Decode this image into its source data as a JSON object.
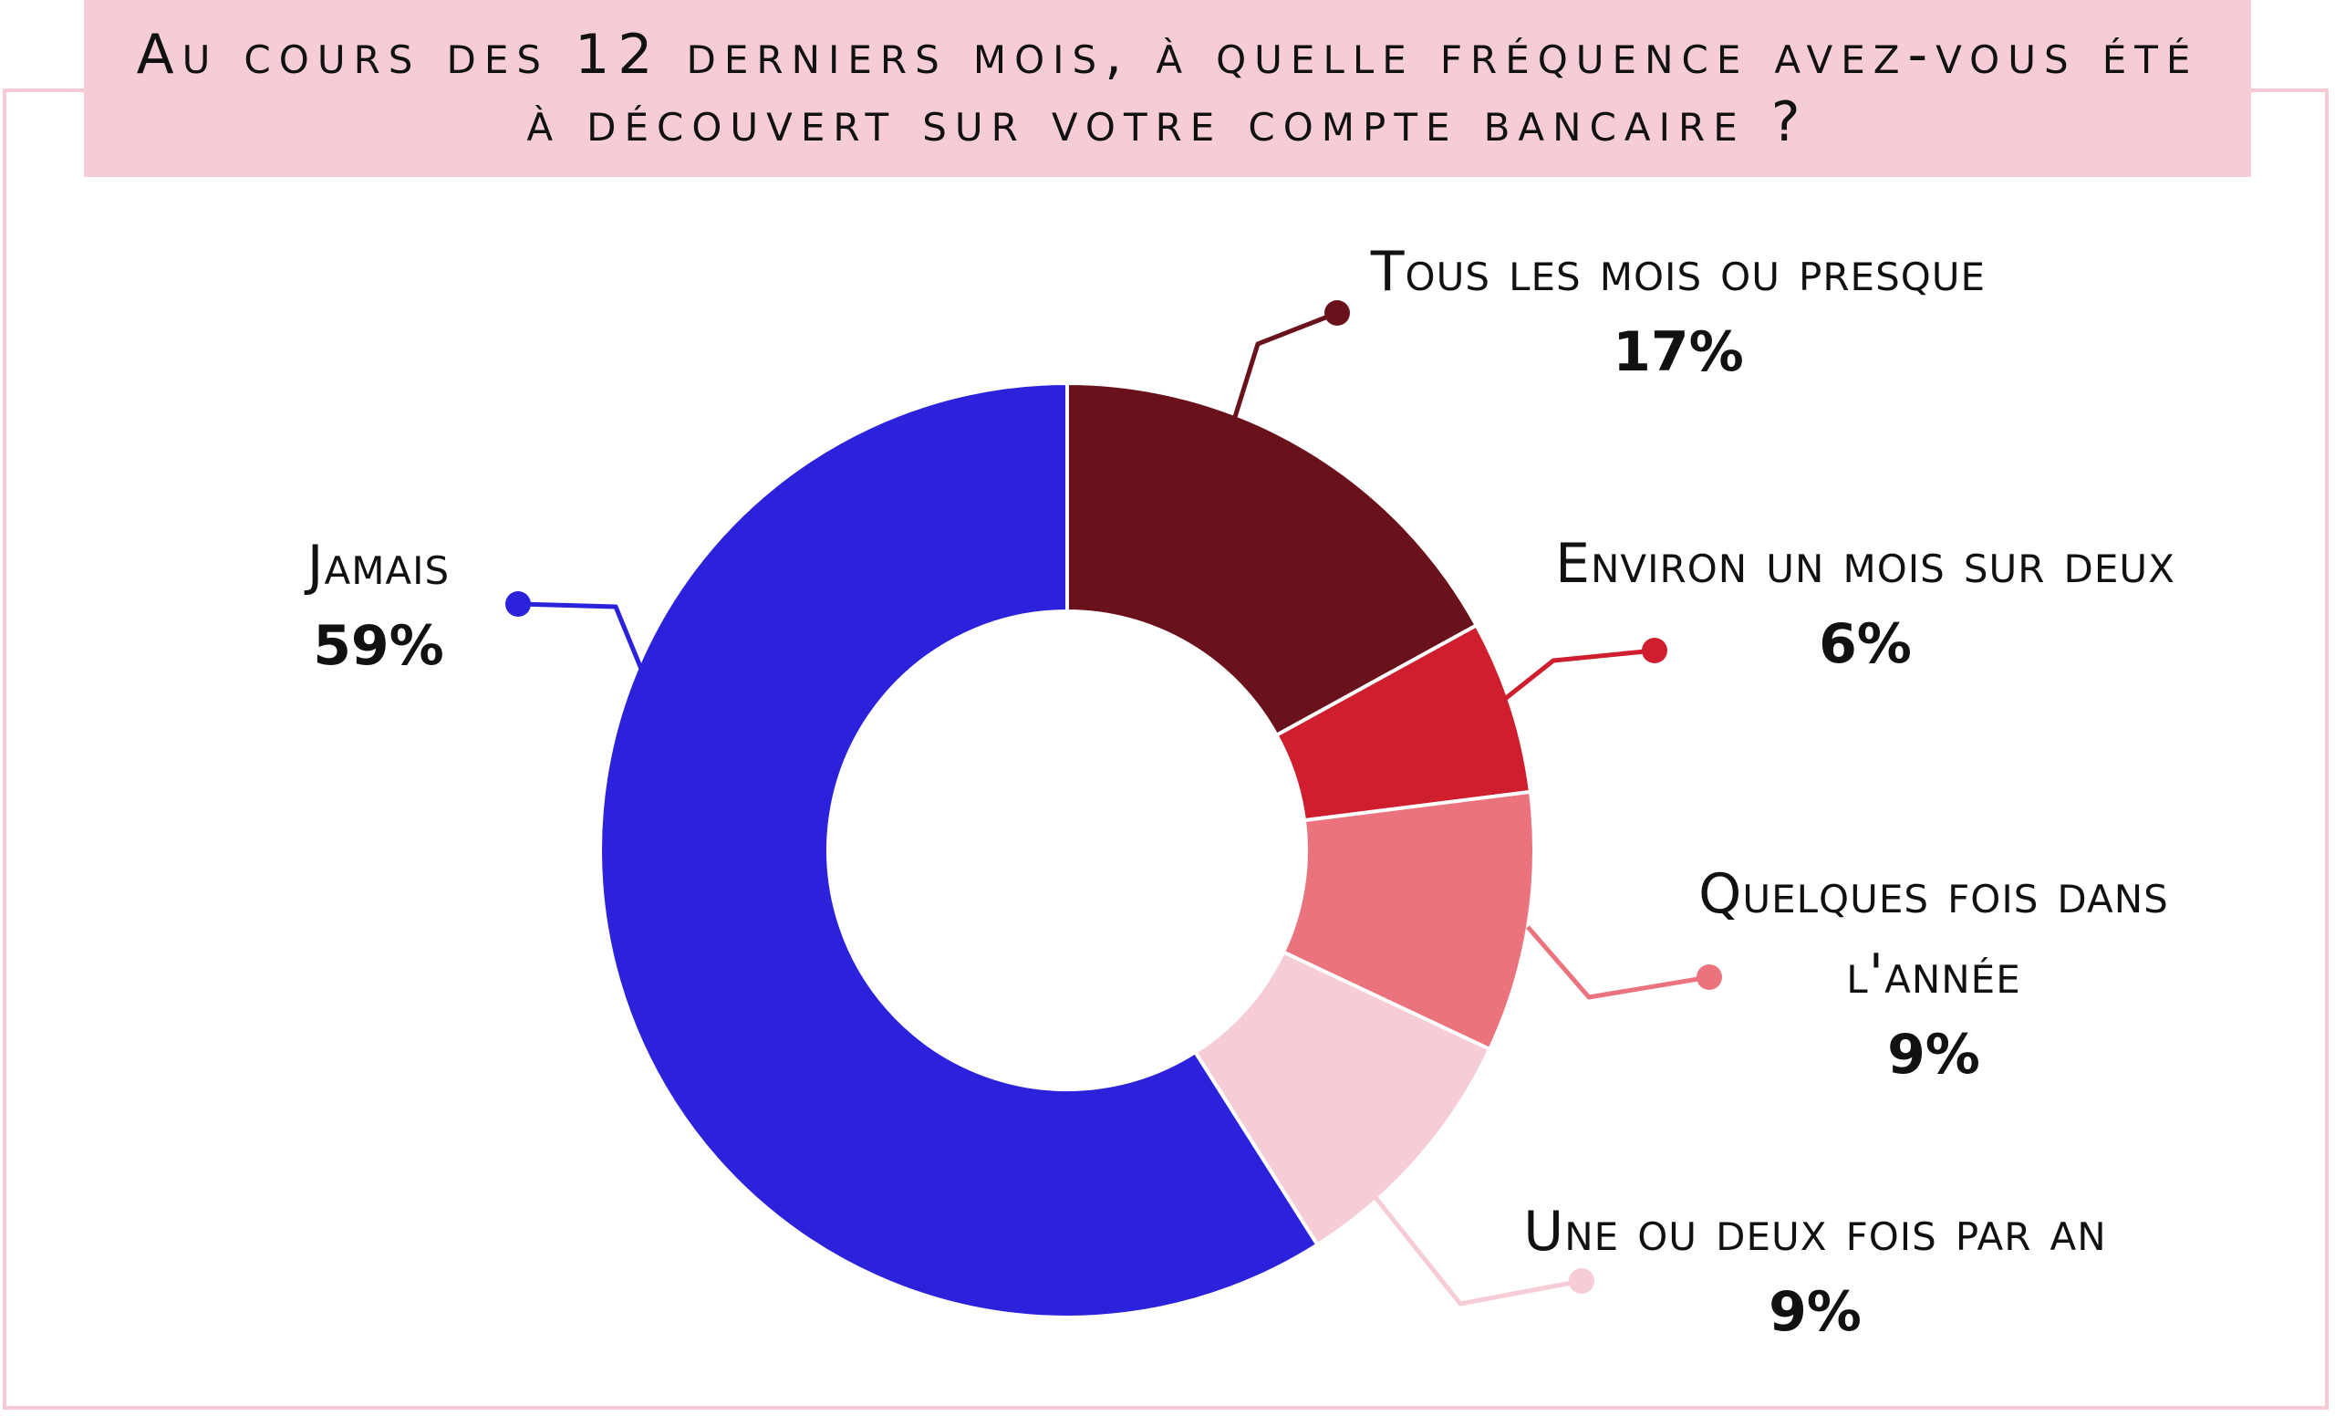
{
  "chart_data": {
    "type": "pie",
    "variant": "donut",
    "title": "Au cours des 12 derniers mois, à quelle fréquence avez-vous été à découvert sur votre compte bancaire ?",
    "slices": [
      {
        "label": "Tous les mois ou presque",
        "label_lines": [
          "Tous les mois ou presque"
        ],
        "value": 17,
        "value_label": "17%",
        "color": "#6a121c"
      },
      {
        "label": "Environ un mois sur deux",
        "label_lines": [
          "Environ un mois sur deux"
        ],
        "value": 6,
        "value_label": "6%",
        "color": "#cf1f2e"
      },
      {
        "label": "Quelques fois dans l'année",
        "label_lines": [
          "Quelques fois dans",
          "l'année"
        ],
        "value": 9,
        "value_label": "9%",
        "color": "#ea737e"
      },
      {
        "label": "Une ou deux fois par an",
        "label_lines": [
          "Une ou deux fois par an"
        ],
        "value": 9,
        "value_label": "9%",
        "color": "#f6ccd6"
      },
      {
        "label": "Jamais",
        "label_lines": [
          "Jamais"
        ],
        "value": 59,
        "value_label": "59%",
        "color": "#2c22dc"
      }
    ]
  }
}
